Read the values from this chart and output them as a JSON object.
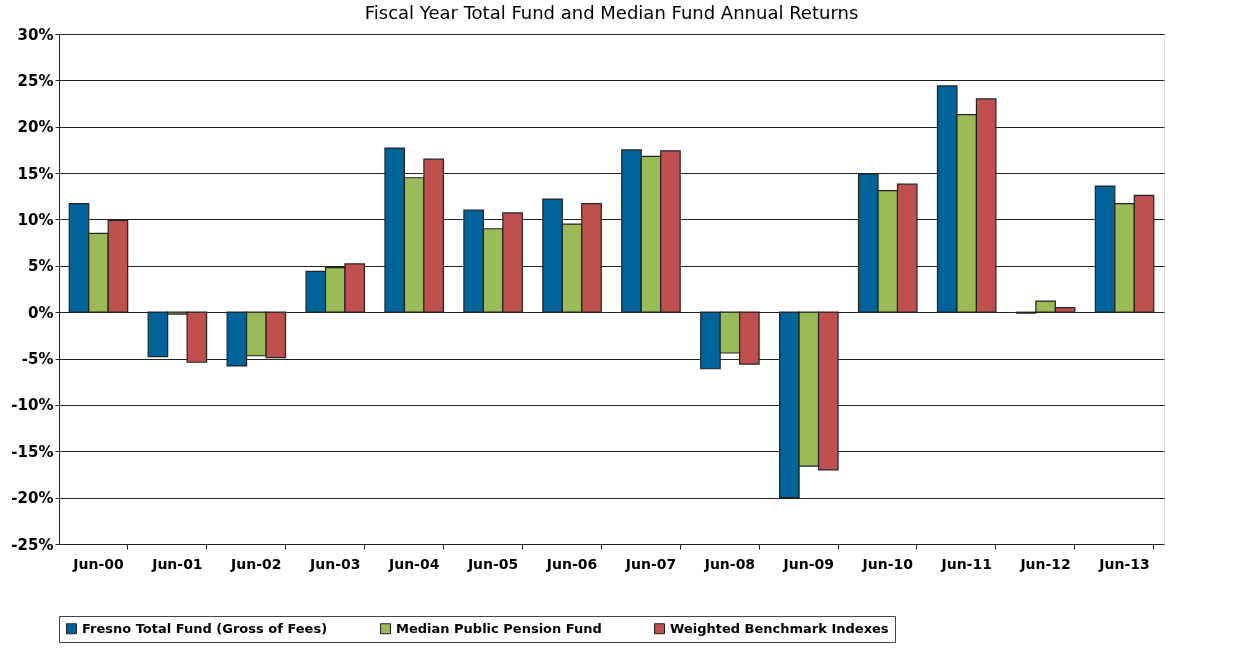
{
  "chart_data": {
    "type": "bar",
    "title": "Fiscal Year Total Fund and Median Fund Annual Returns",
    "categories": [
      "Jun-00",
      "Jun-01",
      "Jun-02",
      "Jun-03",
      "Jun-04",
      "Jun-05",
      "Jun-06",
      "Jun-07",
      "Jun-08",
      "Jun-09",
      "Jun-10",
      "Jun-11",
      "Jun-12",
      "Jun-13"
    ],
    "series": [
      {
        "name": "Fresno Total Fund (Gross of Fees)",
        "color": "#00639a",
        "values": [
          11.7,
          -4.8,
          -5.8,
          4.4,
          17.7,
          11.0,
          12.2,
          17.5,
          -6.1,
          -20.0,
          14.9,
          24.4,
          -0.1,
          13.6
        ]
      },
      {
        "name": "Median Public Pension Fund",
        "color": "#9bbb59",
        "values": [
          8.5,
          -0.2,
          -4.7,
          4.8,
          14.5,
          9.0,
          9.5,
          16.8,
          -4.4,
          -16.6,
          13.1,
          21.3,
          1.2,
          11.7
        ]
      },
      {
        "name": "Weighted Benchmark Indexes",
        "color": "#c0504d",
        "values": [
          9.9,
          -5.4,
          -4.9,
          5.2,
          16.5,
          10.7,
          11.7,
          17.4,
          -5.6,
          -17.0,
          13.8,
          23.0,
          0.5,
          12.6
        ]
      }
    ],
    "ylim": [
      -25,
      30
    ],
    "yticks": [
      {
        "value": -25,
        "label": "-25%"
      },
      {
        "value": -20,
        "label": "-20%"
      },
      {
        "value": -15,
        "label": "-15%"
      },
      {
        "value": -10,
        "label": "-10%"
      },
      {
        "value": -5,
        "label": "-5%"
      },
      {
        "value": 0,
        "label": "0%"
      },
      {
        "value": 5,
        "label": "5%"
      },
      {
        "value": 10,
        "label": "10%"
      },
      {
        "value": 15,
        "label": "15%"
      },
      {
        "value": 20,
        "label": "20%"
      },
      {
        "value": 25,
        "label": "25%"
      },
      {
        "value": 30,
        "label": "30%"
      }
    ],
    "grid": "y",
    "legend": "bottom"
  }
}
